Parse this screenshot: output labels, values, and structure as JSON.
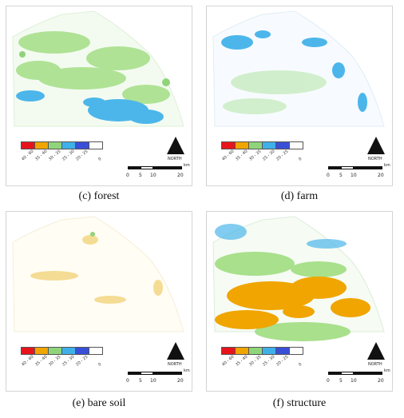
{
  "legend": {
    "colors": [
      "#e8141c",
      "#f0a500",
      "#8fd47a",
      "#3fb0e8",
      "#3a4fd8",
      "#ffffff"
    ],
    "labels": [
      "40 - 60",
      "35 - 40",
      "30 - 35",
      "25 - 30",
      "20 - 25",
      "0"
    ]
  },
  "north_label": "NORTH",
  "scale": {
    "unit": "km",
    "ticks": [
      "0",
      "5",
      "10",
      "20"
    ]
  },
  "panels": [
    {
      "id": "c",
      "caption": "(c)  forest"
    },
    {
      "id": "d",
      "caption": "(d)  farm"
    },
    {
      "id": "e",
      "caption": "(e)  bare  soil"
    },
    {
      "id": "f",
      "caption": "(f)  structure"
    }
  ]
}
